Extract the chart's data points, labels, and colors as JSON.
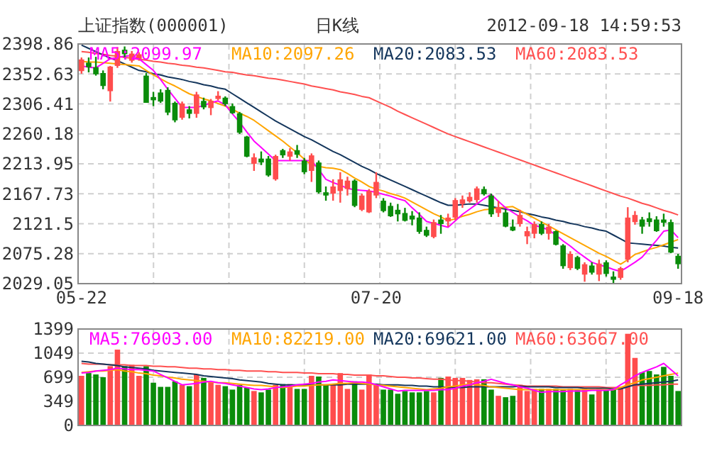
{
  "chart_data": [
    {
      "type": "candlestick",
      "title": "上证指数(000001)",
      "subtitle": "日K线",
      "annotations": [
        "2012-09-18 14:59:53"
      ],
      "categories": [
        "05-22",
        null,
        null,
        null,
        null,
        null,
        null,
        null,
        null,
        null,
        null,
        null,
        null,
        null,
        null,
        null,
        null,
        null,
        null,
        null,
        null,
        null,
        null,
        null,
        null,
        null,
        null,
        null,
        null,
        null,
        null,
        null,
        null,
        null,
        null,
        null,
        null,
        null,
        null,
        null,
        null,
        "07-20",
        null,
        null,
        null,
        null,
        null,
        null,
        null,
        null,
        null,
        null,
        null,
        null,
        null,
        null,
        null,
        null,
        null,
        null,
        null,
        null,
        null,
        null,
        null,
        null,
        null,
        null,
        null,
        null,
        null,
        null,
        null,
        null,
        null,
        null,
        null,
        null,
        null,
        null,
        null,
        null,
        null,
        "09-18"
      ],
      "ohlc": [
        [
          2357,
          2378,
          2353,
          2375
        ],
        [
          2370,
          2378,
          2355,
          2363
        ],
        [
          2363,
          2379,
          2350,
          2352
        ],
        [
          2354,
          2358,
          2329,
          2334
        ],
        [
          2326,
          2365,
          2310,
          2364
        ],
        [
          2365,
          2394,
          2362,
          2388
        ],
        [
          2390,
          2395,
          2378,
          2383
        ],
        [
          2373,
          2388,
          2370,
          2384
        ],
        [
          2376,
          2386,
          2373,
          2383
        ],
        [
          2350,
          2354,
          2308,
          2308
        ],
        [
          2317,
          2325,
          2303,
          2312
        ],
        [
          2324,
          2329,
          2308,
          2310
        ],
        [
          2328,
          2332,
          2289,
          2293
        ],
        [
          2308,
          2310,
          2278,
          2281
        ],
        [
          2285,
          2310,
          2282,
          2307
        ],
        [
          2298,
          2303,
          2284,
          2291
        ],
        [
          2291,
          2325,
          2285,
          2321
        ],
        [
          2311,
          2316,
          2298,
          2301
        ],
        [
          2300,
          2314,
          2289,
          2311
        ],
        [
          2314,
          2326,
          2312,
          2319
        ],
        [
          2316,
          2318,
          2303,
          2306
        ],
        [
          2303,
          2307,
          2291,
          2292
        ],
        [
          2292,
          2294,
          2260,
          2262
        ],
        [
          2256,
          2257,
          2224,
          2225
        ],
        [
          2214,
          2230,
          2203,
          2224
        ],
        [
          2222,
          2233,
          2212,
          2216
        ],
        [
          2222,
          2226,
          2194,
          2196
        ],
        [
          2190,
          2228,
          2188,
          2226
        ],
        [
          2235,
          2237,
          2223,
          2227
        ],
        [
          2225,
          2238,
          2219,
          2233
        ],
        [
          2235,
          2243,
          2223,
          2228
        ],
        [
          2219,
          2223,
          2198,
          2201
        ],
        [
          2203,
          2230,
          2186,
          2227
        ],
        [
          2216,
          2219,
          2168,
          2170
        ],
        [
          2170,
          2179,
          2157,
          2165
        ],
        [
          2168,
          2190,
          2157,
          2179
        ],
        [
          2172,
          2201,
          2154,
          2190
        ],
        [
          2175,
          2194,
          2165,
          2188
        ],
        [
          2188,
          2190,
          2147,
          2149
        ],
        [
          2143,
          2168,
          2141,
          2165
        ],
        [
          2139,
          2175,
          2138,
          2172
        ],
        [
          2165,
          2201,
          2161,
          2186
        ],
        [
          2157,
          2161,
          2139,
          2141
        ],
        [
          2149,
          2154,
          2132,
          2133
        ],
        [
          2143,
          2152,
          2125,
          2136
        ],
        [
          2138,
          2146,
          2125,
          2126
        ],
        [
          2134,
          2141,
          2119,
          2128
        ],
        [
          2131,
          2139,
          2106,
          2109
        ],
        [
          2112,
          2117,
          2101,
          2103
        ],
        [
          2101,
          2128,
          2099,
          2124
        ],
        [
          2128,
          2135,
          2106,
          2121
        ],
        [
          2125,
          2137,
          2117,
          2131
        ],
        [
          2131,
          2161,
          2127,
          2158
        ],
        [
          2152,
          2165,
          2146,
          2159
        ],
        [
          2156,
          2170,
          2154,
          2163
        ],
        [
          2158,
          2179,
          2154,
          2176
        ],
        [
          2175,
          2179,
          2165,
          2167
        ],
        [
          2165,
          2168,
          2132,
          2136
        ],
        [
          2138,
          2157,
          2132,
          2147
        ],
        [
          2139,
          2143,
          2116,
          2117
        ],
        [
          2117,
          2128,
          2110,
          2111
        ],
        [
          2121,
          2143,
          2117,
          2135
        ],
        [
          2102,
          2117,
          2090,
          2110
        ],
        [
          2106,
          2125,
          2099,
          2121
        ],
        [
          2121,
          2125,
          2104,
          2106
        ],
        [
          2106,
          2121,
          2097,
          2117
        ],
        [
          2110,
          2111,
          2088,
          2089
        ],
        [
          2088,
          2090,
          2052,
          2056
        ],
        [
          2053,
          2079,
          2050,
          2075
        ],
        [
          2070,
          2072,
          2050,
          2052
        ],
        [
          2043,
          2062,
          2032,
          2059
        ],
        [
          2057,
          2062,
          2043,
          2046
        ],
        [
          2043,
          2066,
          2033,
          2060
        ],
        [
          2062,
          2065,
          2040,
          2044
        ],
        [
          2040,
          2048,
          2030,
          2035
        ],
        [
          2038,
          2055,
          2035,
          2053
        ],
        [
          2066,
          2147,
          2062,
          2131
        ],
        [
          2124,
          2141,
          2120,
          2135
        ],
        [
          2128,
          2132,
          2106,
          2117
        ],
        [
          2130,
          2139,
          2117,
          2124
        ],
        [
          2128,
          2133,
          2109,
          2110
        ],
        [
          2128,
          2137,
          2117,
          2123
        ],
        [
          2124,
          2128,
          2076,
          2077
        ],
        [
          2072,
          2075,
          2052,
          2059
        ]
      ],
      "colors": [
        "#ff4d4d",
        "#0a8c0a",
        "#0a8c0a",
        "#0a8c0a",
        "#ff4d4d",
        "#ff4d4d",
        "#0a8c0a",
        "#ff4d4d",
        "#ff4d4d",
        "#0a8c0a",
        "#0a8c0a",
        "#0a8c0a",
        "#0a8c0a",
        "#0a8c0a",
        "#ff4d4d",
        "#0a8c0a",
        "#ff4d4d",
        "#0a8c0a",
        "#ff4d4d",
        "#ff4d4d",
        "#0a8c0a",
        "#0a8c0a",
        "#0a8c0a",
        "#0a8c0a",
        "#ff4d4d",
        "#0a8c0a",
        "#0a8c0a",
        "#ff4d4d",
        "#0a8c0a",
        "#ff4d4d",
        "#0a8c0a",
        "#0a8c0a",
        "#ff4d4d",
        "#0a8c0a",
        "#0a8c0a",
        "#ff4d4d",
        "#ff4d4d",
        "#ff4d4d",
        "#0a8c0a",
        "#ff4d4d",
        "#ff4d4d",
        "#ff4d4d",
        "#0a8c0a",
        "#0a8c0a",
        "#0a8c0a",
        "#0a8c0a",
        "#0a8c0a",
        "#0a8c0a",
        "#0a8c0a",
        "#ff4d4d",
        "#0a8c0a",
        "#ff4d4d",
        "#ff4d4d",
        "#ff4d4d",
        "#ff4d4d",
        "#ff4d4d",
        "#0a8c0a",
        "#0a8c0a",
        "#ff4d4d",
        "#0a8c0a",
        "#0a8c0a",
        "#ff4d4d",
        "#ff4d4d",
        "#ff4d4d",
        "#0a8c0a",
        "#ff4d4d",
        "#0a8c0a",
        "#0a8c0a",
        "#ff4d4d",
        "#0a8c0a",
        "#ff4d4d",
        "#0a8c0a",
        "#ff4d4d",
        "#0a8c0a",
        "#0a8c0a",
        "#ff4d4d",
        "#ff4d4d",
        "#ff4d4d",
        "#0a8c0a",
        "#0a8c0a",
        "#0a8c0a",
        "#0a8c0a",
        "#0a8c0a",
        "#0a8c0a"
      ],
      "series": [
        {
          "name": "MA5:2099.97",
          "type": "line",
          "color": "#ff00ff",
          "values": [
            2365,
            2363,
            2362,
            2369,
            2376,
            2378,
            2380,
            2381,
            2376,
            2367,
            2358,
            2344,
            2329,
            2315,
            2301,
            2301,
            2301,
            2304,
            2308,
            2311,
            2305,
            2291,
            2278,
            2263,
            2249,
            2239,
            2229,
            2219,
            2219,
            2219,
            2219,
            2219,
            2219,
            2205,
            2190,
            2185,
            2181,
            2176,
            2174,
            2173,
            2172,
            2170,
            2167,
            2164,
            2160,
            2157,
            2146,
            2136,
            2125,
            2122,
            2119,
            2116,
            2126,
            2136,
            2144,
            2152,
            2160,
            2167,
            2156,
            2146,
            2139,
            2132,
            2126,
            2119,
            2116,
            2112,
            2104,
            2095,
            2087,
            2078,
            2070,
            2062,
            2058,
            2055,
            2051,
            2048,
            2055,
            2062,
            2070,
            2083,
            2096,
            2110,
            2112,
            2100
          ]
        },
        {
          "name": "MA10:2097.26",
          "type": "line",
          "color": "#ffa500",
          "values": [
            2372,
            2371,
            2371,
            2370,
            2369,
            2368,
            2367,
            2366,
            2365,
            2358,
            2351,
            2345,
            2339,
            2334,
            2328,
            2322,
            2318,
            2314,
            2311,
            2307,
            2303,
            2298,
            2292,
            2287,
            2281,
            2273,
            2265,
            2257,
            2249,
            2240,
            2231,
            2221,
            2212,
            2210,
            2208,
            2207,
            2205,
            2199,
            2192,
            2186,
            2179,
            2175,
            2172,
            2168,
            2165,
            2161,
            2155,
            2149,
            2143,
            2137,
            2132,
            2126,
            2129,
            2133,
            2136,
            2140,
            2143,
            2144,
            2146,
            2147,
            2148,
            2142,
            2136,
            2130,
            2124,
            2118,
            2112,
            2106,
            2100,
            2094,
            2088,
            2082,
            2076,
            2071,
            2065,
            2059,
            2066,
            2074,
            2078,
            2082,
            2085,
            2089,
            2093,
            2097
          ]
        },
        {
          "name": "MA20:2083.53",
          "type": "line",
          "color": "#14365c",
          "values": [
            2397,
            2392,
            2387,
            2382,
            2377,
            2373,
            2368,
            2363,
            2358,
            2356,
            2353,
            2351,
            2348,
            2346,
            2344,
            2341,
            2339,
            2336,
            2334,
            2331,
            2329,
            2322,
            2315,
            2308,
            2301,
            2294,
            2287,
            2280,
            2274,
            2268,
            2262,
            2256,
            2251,
            2245,
            2239,
            2233,
            2228,
            2222,
            2216,
            2210,
            2205,
            2199,
            2194,
            2189,
            2184,
            2179,
            2174,
            2169,
            2164,
            2159,
            2154,
            2150,
            2150,
            2151,
            2152,
            2152,
            2150,
            2148,
            2146,
            2144,
            2142,
            2140,
            2137,
            2135,
            2132,
            2130,
            2127,
            2125,
            2122,
            2120,
            2117,
            2115,
            2112,
            2110,
            2104,
            2098,
            2092,
            2091,
            2090,
            2089,
            2088,
            2087,
            2085,
            2084
          ]
        },
        {
          "name": "MA60:2083.53",
          "type": "line",
          "color": "#ff5050",
          "values": [
            2387,
            2386,
            2384,
            2383,
            2381,
            2380,
            2378,
            2377,
            2375,
            2374,
            2372,
            2371,
            2369,
            2368,
            2366,
            2365,
            2363,
            2362,
            2360,
            2358,
            2356,
            2355,
            2353,
            2351,
            2350,
            2348,
            2346,
            2345,
            2343,
            2341,
            2339,
            2337,
            2334,
            2332,
            2330,
            2328,
            2325,
            2323,
            2321,
            2318,
            2316,
            2311,
            2306,
            2301,
            2295,
            2290,
            2285,
            2280,
            2275,
            2270,
            2265,
            2260,
            2256,
            2252,
            2248,
            2244,
            2240,
            2236,
            2232,
            2228,
            2224,
            2220,
            2216,
            2212,
            2208,
            2204,
            2200,
            2196,
            2192,
            2188,
            2184,
            2180,
            2176,
            2172,
            2168,
            2164,
            2161,
            2157,
            2153,
            2150,
            2146,
            2142,
            2139,
            2135
          ]
        }
      ],
      "ylim": [
        2029.05,
        2398.86
      ],
      "yticks": [
        2029.05,
        2075.28,
        2121.5,
        2167.73,
        2213.95,
        2260.18,
        2306.41,
        2352.63,
        2398.86
      ],
      "grid": true,
      "legend": "top"
    },
    {
      "type": "bar",
      "categories": [
        null,
        null,
        null,
        null,
        null,
        null,
        null,
        null,
        null,
        null,
        null,
        null,
        null,
        null,
        null,
        null,
        null,
        null,
        null,
        null,
        null,
        null,
        null,
        null,
        null,
        null,
        null,
        null,
        null,
        null,
        null,
        null,
        null,
        null,
        null,
        null,
        null,
        null,
        null,
        null,
        null,
        null,
        null,
        null,
        null,
        null,
        null,
        null,
        null,
        null,
        null,
        null,
        null,
        null,
        null,
        null,
        null,
        null,
        null,
        null,
        null,
        null,
        null,
        null,
        null,
        null,
        null,
        null,
        null,
        null,
        null,
        null,
        null,
        null,
        null,
        null,
        null,
        null,
        null,
        null,
        null,
        null,
        null,
        null
      ],
      "values": [
        720,
        760,
        740,
        700,
        860,
        1100,
        860,
        880,
        720,
        860,
        620,
        560,
        560,
        640,
        590,
        570,
        740,
        690,
        630,
        590,
        570,
        520,
        590,
        550,
        500,
        480,
        520,
        590,
        600,
        600,
        530,
        530,
        720,
        710,
        590,
        590,
        760,
        530,
        640,
        520,
        740,
        600,
        520,
        520,
        460,
        500,
        480,
        480,
        500,
        480,
        690,
        710,
        690,
        690,
        660,
        670,
        670,
        520,
        430,
        410,
        430,
        590,
        500,
        530,
        530,
        530,
        530,
        520,
        530,
        520,
        530,
        450,
        530,
        520,
        520,
        550,
        1330,
        980,
        770,
        790,
        740,
        850,
        720,
        500
      ],
      "colors": [
        "#ff4d4d",
        "#0a8c0a",
        "#0a8c0a",
        "#0a8c0a",
        "#ff4d4d",
        "#ff4d4d",
        "#0a8c0a",
        "#ff4d4d",
        "#ff4d4d",
        "#0a8c0a",
        "#0a8c0a",
        "#0a8c0a",
        "#0a8c0a",
        "#0a8c0a",
        "#ff4d4d",
        "#0a8c0a",
        "#ff4d4d",
        "#0a8c0a",
        "#ff4d4d",
        "#ff4d4d",
        "#0a8c0a",
        "#0a8c0a",
        "#0a8c0a",
        "#0a8c0a",
        "#ff4d4d",
        "#0a8c0a",
        "#0a8c0a",
        "#ff4d4d",
        "#0a8c0a",
        "#ff4d4d",
        "#0a8c0a",
        "#0a8c0a",
        "#ff4d4d",
        "#0a8c0a",
        "#0a8c0a",
        "#ff4d4d",
        "#ff4d4d",
        "#ff4d4d",
        "#0a8c0a",
        "#ff4d4d",
        "#ff4d4d",
        "#ff4d4d",
        "#0a8c0a",
        "#0a8c0a",
        "#0a8c0a",
        "#0a8c0a",
        "#0a8c0a",
        "#0a8c0a",
        "#0a8c0a",
        "#ff4d4d",
        "#0a8c0a",
        "#ff4d4d",
        "#ff4d4d",
        "#ff4d4d",
        "#ff4d4d",
        "#ff4d4d",
        "#0a8c0a",
        "#0a8c0a",
        "#ff4d4d",
        "#0a8c0a",
        "#0a8c0a",
        "#ff4d4d",
        "#ff4d4d",
        "#ff4d4d",
        "#0a8c0a",
        "#ff4d4d",
        "#0a8c0a",
        "#0a8c0a",
        "#ff4d4d",
        "#0a8c0a",
        "#ff4d4d",
        "#0a8c0a",
        "#ff4d4d",
        "#0a8c0a",
        "#0a8c0a",
        "#ff4d4d",
        "#ff4d4d",
        "#ff4d4d",
        "#0a8c0a",
        "#0a8c0a",
        "#0a8c0a",
        "#0a8c0a",
        "#0a8c0a",
        "#0a8c0a"
      ],
      "series": [
        {
          "name": "MA5:76903.00",
          "type": "line",
          "color": "#ff00ff",
          "values": [
            760,
            770,
            790,
            800,
            810,
            830,
            820,
            810,
            810,
            800,
            790,
            740,
            690,
            640,
            590,
            600,
            610,
            630,
            640,
            620,
            610,
            590,
            570,
            550,
            530,
            520,
            530,
            550,
            560,
            570,
            590,
            600,
            610,
            630,
            640,
            660,
            650,
            640,
            630,
            630,
            620,
            590,
            560,
            530,
            500,
            510,
            510,
            510,
            510,
            510,
            520,
            520,
            540,
            570,
            590,
            620,
            640,
            670,
            640,
            610,
            590,
            560,
            540,
            510,
            480,
            490,
            490,
            490,
            500,
            500,
            500,
            510,
            510,
            510,
            520,
            590,
            650,
            720,
            770,
            810,
            850,
            900,
            810,
            720
          ]
        },
        {
          "name": "MA10:82219.00",
          "type": "line",
          "color": "#ffa500",
          "values": [
            770,
            780,
            790,
            790,
            800,
            810,
            790,
            780,
            760,
            750,
            730,
            720,
            700,
            690,
            670,
            660,
            650,
            640,
            630,
            620,
            620,
            610,
            600,
            590,
            580,
            580,
            570,
            560,
            550,
            560,
            570,
            570,
            580,
            590,
            590,
            600,
            610,
            610,
            620,
            610,
            600,
            590,
            580,
            570,
            560,
            550,
            540,
            530,
            520,
            530,
            540,
            560,
            570,
            590,
            600,
            590,
            580,
            560,
            550,
            540,
            530,
            520,
            520,
            520,
            520,
            520,
            520,
            520,
            520,
            520,
            520,
            520,
            520,
            520,
            520,
            550,
            590,
            620,
            660,
            680,
            700,
            720,
            740,
            760
          ]
        },
        {
          "name": "MA20:69621.00",
          "type": "line",
          "color": "#14365c",
          "values": [
            930,
            920,
            900,
            890,
            880,
            870,
            850,
            840,
            830,
            820,
            800,
            790,
            780,
            770,
            760,
            750,
            740,
            720,
            710,
            700,
            690,
            680,
            660,
            650,
            640,
            630,
            610,
            600,
            590,
            590,
            590,
            590,
            590,
            590,
            590,
            590,
            590,
            600,
            600,
            600,
            600,
            600,
            590,
            590,
            590,
            580,
            580,
            570,
            570,
            560,
            560,
            550,
            550,
            550,
            560,
            560,
            560,
            560,
            560,
            560,
            560,
            570,
            560,
            560,
            560,
            560,
            550,
            550,
            550,
            550,
            540,
            540,
            540,
            540,
            530,
            530,
            560,
            590,
            600,
            610,
            620,
            630,
            640,
            660
          ]
        },
        {
          "name": "MA60:63667.00",
          "type": "line",
          "color": "#ff5050",
          "values": [
            900,
            890,
            890,
            890,
            880,
            880,
            880,
            870,
            870,
            870,
            860,
            860,
            850,
            850,
            840,
            830,
            830,
            820,
            820,
            810,
            810,
            800,
            800,
            790,
            790,
            790,
            780,
            780,
            770,
            770,
            770,
            760,
            760,
            750,
            750,
            750,
            740,
            740,
            730,
            730,
            730,
            720,
            720,
            710,
            700,
            700,
            690,
            690,
            680,
            670,
            670,
            660,
            650,
            650,
            640,
            630,
            620,
            620,
            610,
            600,
            590,
            580,
            570,
            570,
            570,
            570,
            570,
            560,
            560,
            560,
            560,
            560,
            560,
            550,
            550,
            550,
            570,
            580,
            580,
            580,
            590,
            590,
            600,
            600
          ]
        }
      ],
      "ylim": [
        0,
        1399
      ],
      "yticks": [
        0,
        349,
        699,
        1049,
        1399
      ],
      "grid": true,
      "legend": "top",
      "tick_labels": "y"
    }
  ]
}
